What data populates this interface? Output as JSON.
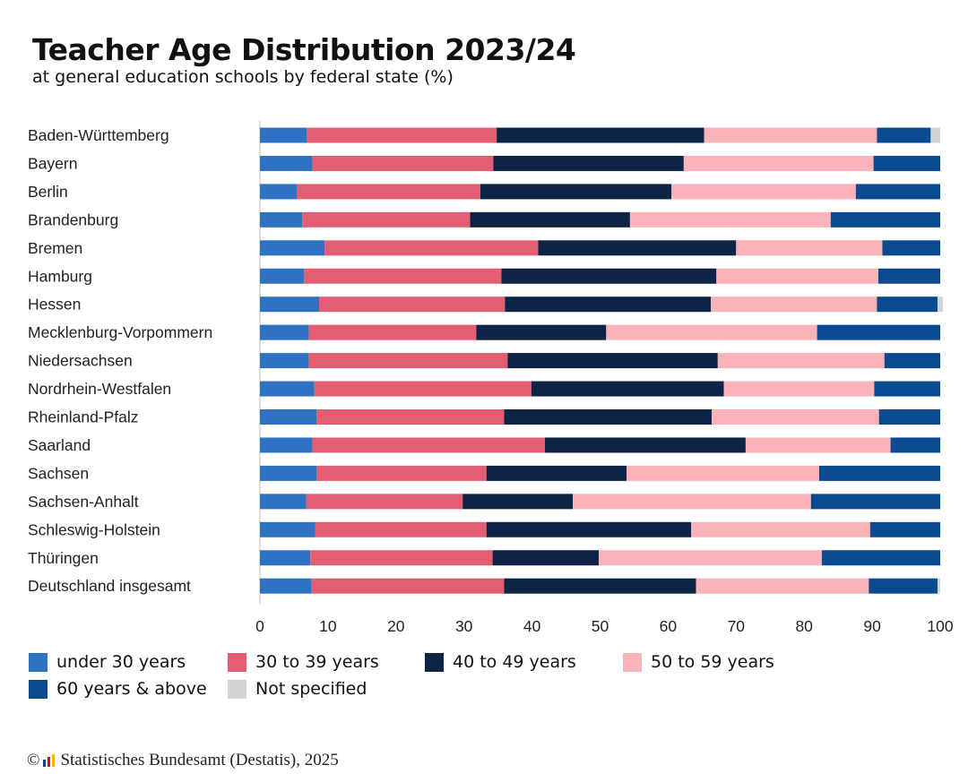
{
  "header": {
    "title": "Teacher Age Distribution 2023/24",
    "subtitle": "at general education schools by federal state (%)"
  },
  "legend": [
    {
      "label": "under 30 years",
      "color": "#2e72c4"
    },
    {
      "label": "30 to 39 years",
      "color": "#e45e72"
    },
    {
      "label": "40 to 49 years",
      "color": "#0e2447"
    },
    {
      "label": "50 to 59 years",
      "color": "#fbb3ba"
    },
    {
      "label": "60 years & above",
      "color": "#0a4a8f"
    },
    {
      "label": "Not specified",
      "color": "#d3d3d3"
    }
  ],
  "footer": {
    "copyright": "©",
    "source": "Statistisches Bundesamt (Destatis), 2025",
    "logo_colors": [
      "#1f3f7a",
      "#e30613",
      "#f7b500"
    ]
  },
  "chart_data": {
    "type": "bar",
    "orientation": "horizontal",
    "stacked": true,
    "categories": [
      "Baden-Württemberg",
      "Bayern",
      "Berlin",
      "Brandenburg",
      "Bremen",
      "Hamburg",
      "Hessen",
      "Mecklenburg-Vorpommern",
      "Niedersachsen",
      "Nordrhein-Westfalen",
      "Rheinland-Pfalz",
      "Saarland",
      "Sachsen",
      "Sachsen-Anhalt",
      "Schleswig-Holstein",
      "Thüringen",
      "Deutschland insgesamt"
    ],
    "series": [
      {
        "name": "under 30 years",
        "color": "#2e72c4",
        "values": [
          6.9,
          7.7,
          5.4,
          6.2,
          9.5,
          6.5,
          8.7,
          7.2,
          7.2,
          8.0,
          8.3,
          7.7,
          8.3,
          6.8,
          8.1,
          7.4,
          7.6
        ]
      },
      {
        "name": "30 to 39 years",
        "color": "#e45e72",
        "values": [
          27.9,
          26.6,
          27.0,
          24.7,
          31.4,
          29.0,
          27.3,
          24.6,
          29.2,
          31.9,
          27.6,
          34.2,
          25.0,
          23.0,
          25.2,
          26.8,
          28.3
        ]
      },
      {
        "name": "40 to 49 years",
        "color": "#0e2447",
        "values": [
          30.5,
          28.0,
          28.1,
          23.5,
          29.1,
          31.6,
          30.3,
          19.1,
          30.9,
          28.3,
          30.5,
          29.5,
          20.6,
          16.2,
          30.1,
          15.6,
          28.2
        ]
      },
      {
        "name": "50 to 59 years",
        "color": "#fbb3ba",
        "values": [
          25.4,
          27.9,
          27.1,
          29.5,
          21.5,
          23.8,
          24.4,
          31.0,
          24.5,
          22.1,
          24.6,
          21.3,
          28.3,
          35.0,
          26.3,
          32.8,
          25.4
        ]
      },
      {
        "name": "60 years & above",
        "color": "#0a4a8f",
        "values": [
          7.9,
          9.8,
          12.4,
          16.1,
          8.5,
          9.1,
          8.9,
          18.1,
          8.2,
          9.7,
          9.0,
          7.3,
          17.8,
          19.0,
          10.3,
          17.4,
          10.1
        ]
      },
      {
        "name": "Not specified",
        "color": "#d3d3d3",
        "values": [
          1.4,
          0.0,
          0.0,
          0.0,
          0.0,
          0.0,
          0.8,
          0.0,
          0.0,
          0.0,
          0.0,
          0.0,
          0.0,
          0.0,
          0.0,
          0.0,
          0.4
        ]
      }
    ],
    "xlim": [
      0,
      100
    ],
    "xticks": [
      0,
      10,
      20,
      30,
      40,
      50,
      60,
      70,
      80,
      90,
      100
    ],
    "grid": false,
    "legend_position": "bottom"
  }
}
